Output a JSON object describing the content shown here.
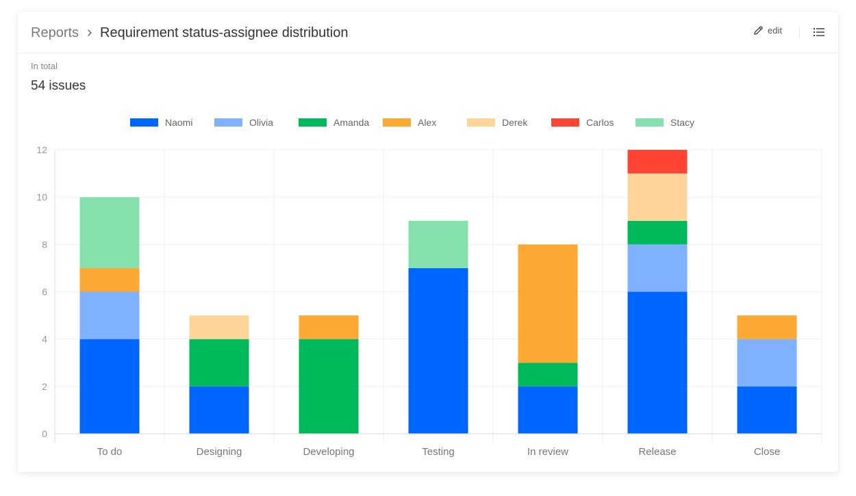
{
  "header": {
    "breadcrumb_root": "Reports",
    "breadcrumb_current": "Requirement status-assignee distribution",
    "edit_label": "edit",
    "edit_icon": "pencil-icon",
    "list_icon": "list-icon",
    "separator_icon": "chevron-right-icon"
  },
  "summary": {
    "label": "In total",
    "value": "54 issues"
  },
  "chart_data": {
    "type": "bar",
    "stacked": true,
    "categories": [
      "To do",
      "Designing",
      "Developing",
      "Testing",
      "In review",
      "Release",
      "Close"
    ],
    "series": [
      {
        "name": "Naomi",
        "color": "#0066ff",
        "values": [
          4,
          2,
          0,
          7,
          2,
          6,
          2
        ]
      },
      {
        "name": "Olivia",
        "color": "#80b1ff",
        "values": [
          2,
          0,
          0,
          0,
          0,
          2,
          2
        ]
      },
      {
        "name": "Amanda",
        "color": "#00b95a",
        "values": [
          0,
          2,
          4,
          0,
          1,
          1,
          0
        ]
      },
      {
        "name": "Alex",
        "color": "#fca933",
        "values": [
          1,
          0,
          1,
          0,
          5,
          0,
          1
        ]
      },
      {
        "name": "Derek",
        "color": "#fdd598",
        "values": [
          0,
          1,
          0,
          0,
          0,
          2,
          0
        ]
      },
      {
        "name": "Carlos",
        "color": "#ff4433",
        "values": [
          0,
          0,
          0,
          0,
          0,
          1,
          0
        ]
      },
      {
        "name": "Stacy",
        "color": "#84e0ad",
        "values": [
          3,
          0,
          0,
          2,
          0,
          0,
          0
        ]
      }
    ],
    "ylim": [
      0,
      12
    ],
    "yticks": [
      0,
      2,
      4,
      6,
      8,
      10,
      12
    ],
    "grid": true,
    "legend_position": "top-center",
    "title": "",
    "xlabel": "",
    "ylabel": ""
  }
}
